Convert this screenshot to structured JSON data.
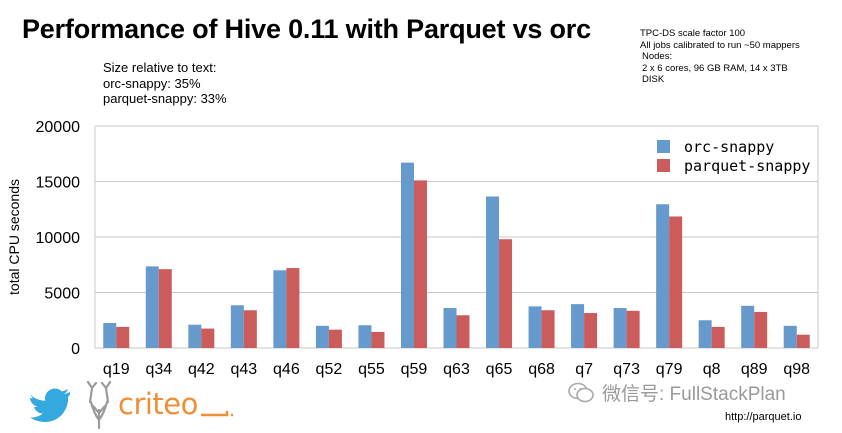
{
  "title": "Performance of Hive 0.11 with Parquet vs orc",
  "info": {
    "line1": "TPC-DS scale factor 100",
    "line2": "All jobs calibrated to run ~50 mappers",
    "line3": "Nodes:",
    "line4": "2 x 6 cores, 96 GB RAM, 14 x 3TB",
    "line5": "DISK"
  },
  "size_note": {
    "heading": "Size relative to text:",
    "orc": "orc-snappy: 35%",
    "parquet": "parquet-snappy: 33%"
  },
  "chart_data": {
    "type": "bar",
    "ylabel": "total CPU seconds",
    "xlabel": "",
    "ylim": [
      0,
      20000
    ],
    "yticks": [
      0,
      5000,
      10000,
      15000,
      20000
    ],
    "grid": true,
    "legend_position": "top-right",
    "categories": [
      "q19",
      "q34",
      "q42",
      "q43",
      "q46",
      "q52",
      "q55",
      "q59",
      "q63",
      "q65",
      "q68",
      "q7",
      "q73",
      "q79",
      "q8",
      "q89",
      "q98"
    ],
    "series": [
      {
        "name": "orc-snappy",
        "color": "#6699cc",
        "values": [
          2250,
          7350,
          2100,
          3850,
          7000,
          2000,
          2050,
          16700,
          3600,
          13650,
          3750,
          3950,
          3600,
          12950,
          2500,
          3800,
          2000
        ]
      },
      {
        "name": "parquet-snappy",
        "color": "#cc5c5c",
        "values": [
          1900,
          7100,
          1750,
          3400,
          7200,
          1650,
          1450,
          15100,
          2950,
          9800,
          3400,
          3150,
          3350,
          11850,
          1900,
          3250,
          1200
        ]
      }
    ]
  },
  "footer": {
    "url": "http://parquet.io",
    "wechat": "微信号: FullStackPlan",
    "criteo": "criteo"
  }
}
